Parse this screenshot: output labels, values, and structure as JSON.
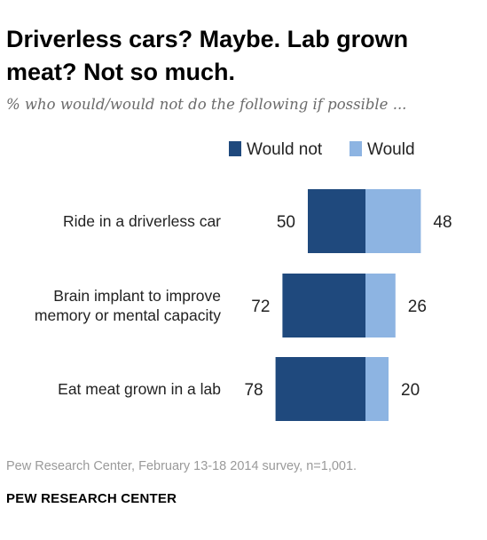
{
  "header": {
    "title": "Driverless cars? Maybe. Lab grown meat? Not so much.",
    "subtitle": "% who would/would not do the following if possible ..."
  },
  "footer": {
    "source": "Pew Research Center, February 13-18 2014 survey, n=1,001.",
    "brand": "PEW RESEARCH CENTER"
  },
  "colors": {
    "would_not": "#1f497d",
    "would": "#8db4e2"
  },
  "chart_data": {
    "type": "bar",
    "orientation": "horizontal",
    "diverging": true,
    "title": "Driverless cars? Maybe. Lab grown meat? Not so much.",
    "subtitle": "% who would/would not do the following if possible ...",
    "legend_position": "top-right",
    "categories": [
      [
        "Ride in a driverless car"
      ],
      [
        "Brain implant to improve",
        "memory or mental capacity"
      ],
      [
        "Eat meat grown in a lab"
      ]
    ],
    "series": [
      {
        "name": "Would not",
        "values": [
          50,
          72,
          78
        ]
      },
      {
        "name": "Would",
        "values": [
          48,
          26,
          20
        ]
      }
    ],
    "xlim": [
      0,
      100
    ],
    "grid": false
  }
}
